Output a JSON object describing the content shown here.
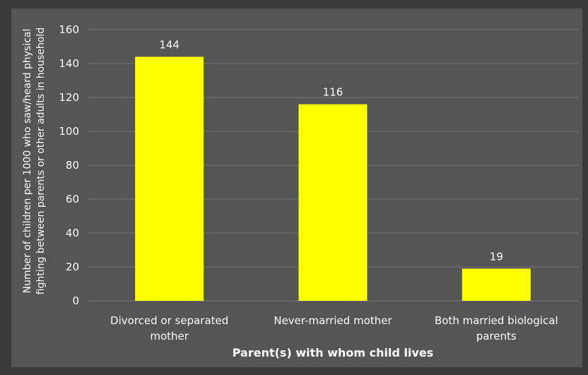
{
  "chart_data": {
    "type": "bar",
    "title": "",
    "categories": [
      [
        "Divorced or separated",
        "mother"
      ],
      [
        "Never-married mother"
      ],
      [
        "Both married biological",
        "parents"
      ]
    ],
    "values": [
      144,
      116,
      19
    ],
    "data_labels": [
      "144",
      "116",
      "19"
    ],
    "xlabel": "Parent(s) with whom child lives",
    "ylabel": [
      "Number of children per 1000 who saw/heard physical",
      "fighting between parents or other adults in household"
    ],
    "ylim": [
      0,
      160
    ],
    "yticks": [
      0,
      20,
      40,
      60,
      80,
      100,
      120,
      140,
      160
    ],
    "grid": true,
    "legend": "none",
    "colors": {
      "bar": "#ffff00",
      "plot_background": "#555555",
      "outer_background": "#3a3a3a",
      "gridline": "#7a7a7a",
      "text": "#ffffff"
    }
  }
}
